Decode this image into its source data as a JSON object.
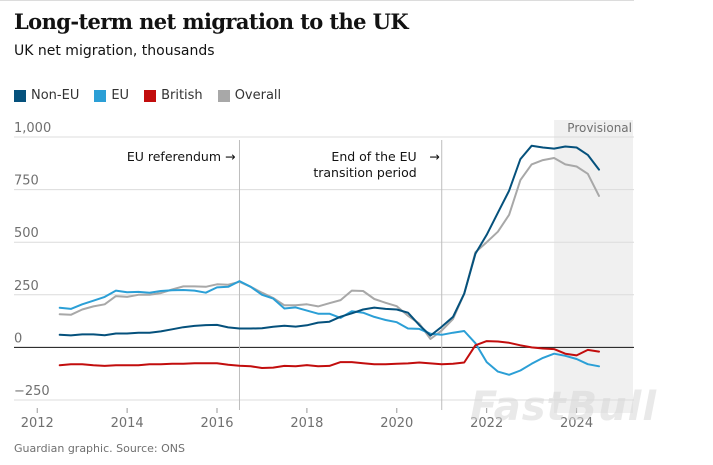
{
  "header": {
    "title": "Long-term net migration to the UK",
    "subtitle": "UK net migration, thousands"
  },
  "legend": [
    {
      "label": "Non-EU",
      "color": "#05517c"
    },
    {
      "label": "EU",
      "color": "#2b9fd6"
    },
    {
      "label": "British",
      "color": "#c20d0d"
    },
    {
      "label": "Overall",
      "color": "#a8a8a8"
    }
  ],
  "annotations": {
    "referendum": "EU referendum",
    "transition_line1": "End of the EU",
    "transition_line2": "transition period",
    "provisional": "Provisional",
    "arrow": "→"
  },
  "footer": {
    "source": "Guardian graphic. Source: ONS"
  },
  "watermark": "FastBull",
  "chart_data": {
    "type": "line",
    "xlabel": "",
    "ylabel": "",
    "xlim": [
      2011.75,
      2025.1
    ],
    "ylim": [
      -250,
      1000
    ],
    "x_ticks": [
      2012,
      2014,
      2016,
      2018,
      2020,
      2022,
      2024
    ],
    "y_ticks": [
      1000,
      750,
      500,
      250,
      0,
      -250
    ],
    "y_tick_labels": [
      "1,000",
      "750",
      "500",
      "250",
      "0",
      "−250"
    ],
    "events": [
      {
        "x": 2016.5,
        "label": "EU referendum"
      },
      {
        "x": 2021.0,
        "label": "End of the EU transition period"
      }
    ],
    "provisional_range": [
      2023.5,
      2025.0
    ],
    "grid": true,
    "legend_position": "top-left",
    "series": [
      {
        "name": "Non-EU",
        "color": "#05517c",
        "points": [
          [
            2012.5,
            60
          ],
          [
            2012.75,
            57
          ],
          [
            2013,
            62
          ],
          [
            2013.25,
            62
          ],
          [
            2013.5,
            58
          ],
          [
            2013.75,
            66
          ],
          [
            2014,
            66
          ],
          [
            2014.25,
            70
          ],
          [
            2014.5,
            70
          ],
          [
            2014.75,
            76
          ],
          [
            2015,
            86
          ],
          [
            2015.25,
            96
          ],
          [
            2015.5,
            102
          ],
          [
            2015.75,
            106
          ],
          [
            2016,
            107
          ],
          [
            2016.25,
            95
          ],
          [
            2016.5,
            90
          ],
          [
            2016.75,
            90
          ],
          [
            2017,
            91
          ],
          [
            2017.25,
            98
          ],
          [
            2017.5,
            103
          ],
          [
            2017.75,
            99
          ],
          [
            2018,
            105
          ],
          [
            2018.25,
            118
          ],
          [
            2018.5,
            122
          ],
          [
            2018.75,
            146
          ],
          [
            2019,
            162
          ],
          [
            2019.25,
            180
          ],
          [
            2019.5,
            189
          ],
          [
            2019.75,
            183
          ],
          [
            2020,
            180
          ],
          [
            2020.25,
            165
          ],
          [
            2020.5,
            106
          ],
          [
            2020.75,
            56
          ],
          [
            2021,
            98
          ],
          [
            2021.25,
            145
          ],
          [
            2021.5,
            255
          ],
          [
            2021.75,
            445
          ],
          [
            2022,
            535
          ],
          [
            2022.25,
            640
          ],
          [
            2022.5,
            745
          ],
          [
            2022.75,
            895
          ],
          [
            2023,
            958
          ],
          [
            2023.25,
            950
          ],
          [
            2023.5,
            945
          ],
          [
            2023.75,
            955
          ],
          [
            2024,
            950
          ],
          [
            2024.25,
            915
          ],
          [
            2024.5,
            845
          ]
        ]
      },
      {
        "name": "EU",
        "color": "#2b9fd6",
        "points": [
          [
            2012.5,
            188
          ],
          [
            2012.75,
            183
          ],
          [
            2013,
            205
          ],
          [
            2013.25,
            222
          ],
          [
            2013.5,
            240
          ],
          [
            2013.75,
            270
          ],
          [
            2014,
            262
          ],
          [
            2014.25,
            264
          ],
          [
            2014.5,
            260
          ],
          [
            2014.75,
            268
          ],
          [
            2015,
            272
          ],
          [
            2015.25,
            273
          ],
          [
            2015.5,
            270
          ],
          [
            2015.75,
            260
          ],
          [
            2016,
            285
          ],
          [
            2016.25,
            288
          ],
          [
            2016.5,
            315
          ],
          [
            2016.75,
            288
          ],
          [
            2017,
            250
          ],
          [
            2017.25,
            232
          ],
          [
            2017.5,
            185
          ],
          [
            2017.75,
            190
          ],
          [
            2018,
            175
          ],
          [
            2018.25,
            160
          ],
          [
            2018.5,
            160
          ],
          [
            2018.75,
            140
          ],
          [
            2019,
            172
          ],
          [
            2019.25,
            165
          ],
          [
            2019.5,
            145
          ],
          [
            2019.75,
            130
          ],
          [
            2020,
            120
          ],
          [
            2020.25,
            90
          ],
          [
            2020.5,
            88
          ],
          [
            2020.75,
            65
          ],
          [
            2021,
            60
          ],
          [
            2021.25,
            70
          ],
          [
            2021.5,
            78
          ],
          [
            2021.75,
            20
          ],
          [
            2022,
            -70
          ],
          [
            2022.25,
            -115
          ],
          [
            2022.5,
            -130
          ],
          [
            2022.75,
            -110
          ],
          [
            2023,
            -78
          ],
          [
            2023.25,
            -50
          ],
          [
            2023.5,
            -30
          ],
          [
            2023.75,
            -40
          ],
          [
            2024,
            -55
          ],
          [
            2024.25,
            -80
          ],
          [
            2024.5,
            -90
          ]
        ]
      },
      {
        "name": "British",
        "color": "#c20d0d",
        "points": [
          [
            2012.5,
            -85
          ],
          [
            2012.75,
            -80
          ],
          [
            2013,
            -80
          ],
          [
            2013.25,
            -85
          ],
          [
            2013.5,
            -88
          ],
          [
            2013.75,
            -85
          ],
          [
            2014,
            -85
          ],
          [
            2014.25,
            -85
          ],
          [
            2014.5,
            -80
          ],
          [
            2014.75,
            -80
          ],
          [
            2015,
            -78
          ],
          [
            2015.25,
            -78
          ],
          [
            2015.5,
            -75
          ],
          [
            2015.75,
            -75
          ],
          [
            2016,
            -75
          ],
          [
            2016.25,
            -82
          ],
          [
            2016.5,
            -87
          ],
          [
            2016.75,
            -90
          ],
          [
            2017,
            -98
          ],
          [
            2017.25,
            -96
          ],
          [
            2017.5,
            -88
          ],
          [
            2017.75,
            -90
          ],
          [
            2018,
            -84
          ],
          [
            2018.25,
            -90
          ],
          [
            2018.5,
            -88
          ],
          [
            2018.75,
            -70
          ],
          [
            2019,
            -70
          ],
          [
            2019.25,
            -75
          ],
          [
            2019.5,
            -80
          ],
          [
            2019.75,
            -80
          ],
          [
            2020,
            -78
          ],
          [
            2020.25,
            -76
          ],
          [
            2020.5,
            -72
          ],
          [
            2020.75,
            -76
          ],
          [
            2021,
            -80
          ],
          [
            2021.25,
            -78
          ],
          [
            2021.5,
            -72
          ],
          [
            2021.75,
            10
          ],
          [
            2022,
            30
          ],
          [
            2022.25,
            28
          ],
          [
            2022.5,
            22
          ],
          [
            2022.75,
            10
          ],
          [
            2023,
            0
          ],
          [
            2023.25,
            -5
          ],
          [
            2023.5,
            -8
          ],
          [
            2023.75,
            -30
          ],
          [
            2024,
            -38
          ],
          [
            2024.25,
            -12
          ],
          [
            2024.5,
            -20
          ]
        ]
      },
      {
        "name": "Overall",
        "color": "#a8a8a8",
        "points": [
          [
            2012.5,
            158
          ],
          [
            2012.75,
            155
          ],
          [
            2013,
            180
          ],
          [
            2013.25,
            195
          ],
          [
            2013.5,
            205
          ],
          [
            2013.75,
            244
          ],
          [
            2014,
            240
          ],
          [
            2014.25,
            250
          ],
          [
            2014.5,
            250
          ],
          [
            2014.75,
            258
          ],
          [
            2015,
            275
          ],
          [
            2015.25,
            290
          ],
          [
            2015.5,
            290
          ],
          [
            2015.75,
            288
          ],
          [
            2016,
            300
          ],
          [
            2016.25,
            298
          ],
          [
            2016.5,
            312
          ],
          [
            2016.75,
            288
          ],
          [
            2017,
            260
          ],
          [
            2017.25,
            235
          ],
          [
            2017.5,
            200
          ],
          [
            2017.75,
            200
          ],
          [
            2018,
            205
          ],
          [
            2018.25,
            195
          ],
          [
            2018.5,
            210
          ],
          [
            2018.75,
            225
          ],
          [
            2019,
            270
          ],
          [
            2019.25,
            268
          ],
          [
            2019.5,
            230
          ],
          [
            2019.75,
            212
          ],
          [
            2020,
            196
          ],
          [
            2020.25,
            150
          ],
          [
            2020.5,
            113
          ],
          [
            2020.75,
            40
          ],
          [
            2021,
            80
          ],
          [
            2021.25,
            135
          ],
          [
            2021.5,
            255
          ],
          [
            2021.75,
            452
          ],
          [
            2022,
            500
          ],
          [
            2022.25,
            550
          ],
          [
            2022.5,
            630
          ],
          [
            2022.75,
            795
          ],
          [
            2023,
            870
          ],
          [
            2023.25,
            890
          ],
          [
            2023.5,
            900
          ],
          [
            2023.75,
            870
          ],
          [
            2024,
            860
          ],
          [
            2024.25,
            825
          ],
          [
            2024.5,
            720
          ]
        ]
      }
    ]
  }
}
